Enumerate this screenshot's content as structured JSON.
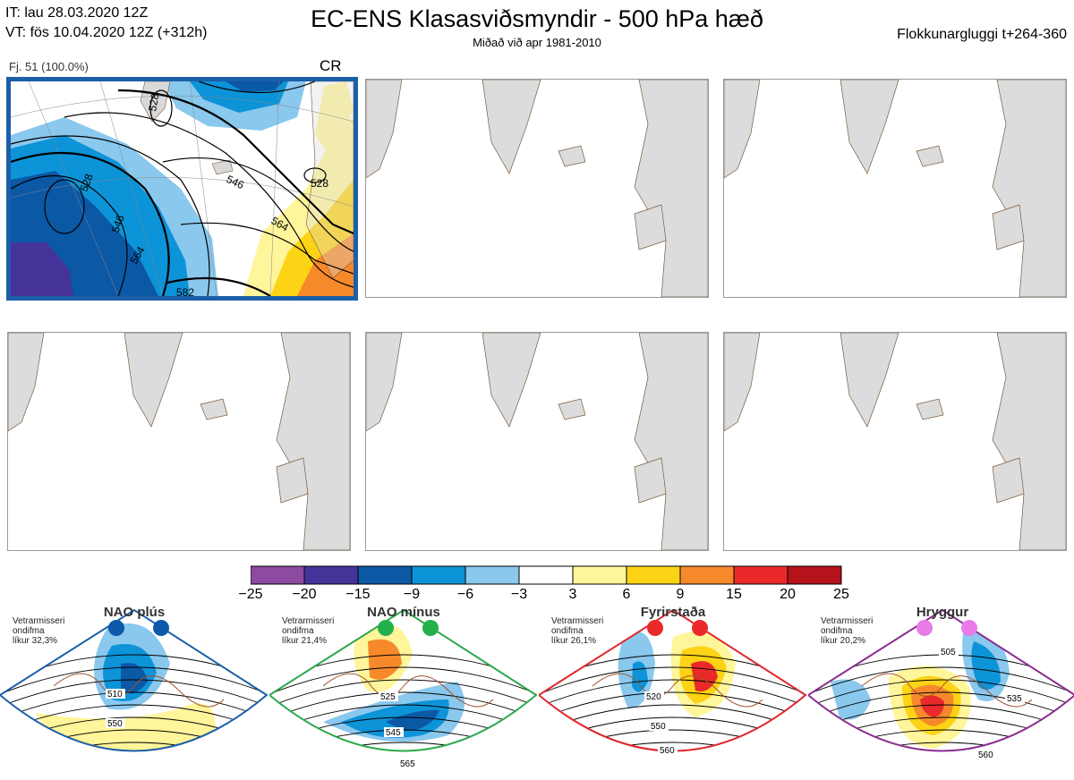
{
  "header": {
    "it_line": "IT: lau 28.03.2020 12Z",
    "vt_line": "VT: fös 10.04.2020 12Z  (+312h)",
    "title": "EC-ENS Klasasviðsmyndir - 500 hPa hæð",
    "subtitle": "Miðað við apr 1981-2010",
    "window": "Flokkunargluggi t+264-360"
  },
  "panel": {
    "label": "Fj. 51 (100.0%)",
    "regime_code": "CR",
    "contour_labels": [
      "528",
      "546",
      "564",
      "528",
      "546",
      "528",
      "564",
      "582"
    ]
  },
  "colorbar": {
    "colors": [
      "#8c4aa0",
      "#46339a",
      "#0b58a5",
      "#0d93d7",
      "#8ac8ee",
      "#ffffff",
      "#fff59a",
      "#fdd315",
      "#f68a2b",
      "#ea2a2a",
      "#b5121b"
    ],
    "labels": [
      "−25",
      "−20",
      "−15",
      "−9",
      "−6",
      "−3",
      "3",
      "6",
      "9",
      "15",
      "20",
      "25"
    ]
  },
  "regimes": [
    {
      "name": "NAO plús",
      "note": "Vetrarmisseri\nondifma\nlíkur 32,3%",
      "border_color": "#1b5fa8",
      "dot_color": "#0d58a8",
      "contours": [
        "510",
        "550"
      ]
    },
    {
      "name": "NAO mínus",
      "note": "Vetrarmisseri\nondifma\nlíkur 21,4%",
      "border_color": "#2aa84a",
      "dot_color": "#22b04b",
      "contours": [
        "525",
        "545",
        "565"
      ]
    },
    {
      "name": "Fyrirstaða",
      "note": "Vetrarmisseri\nondifma\nlíkur 26,1%",
      "border_color": "#e0262a",
      "dot_color": "#ea2a2a",
      "contours": [
        "520",
        "550",
        "560"
      ]
    },
    {
      "name": "Hryggur",
      "note": "Vetrarmisseri\nondifma\nlíkur 20,2%",
      "border_color": "#8b2c8f",
      "dot_color": "#e87be8",
      "contours": [
        "505",
        "535",
        "560"
      ]
    }
  ]
}
